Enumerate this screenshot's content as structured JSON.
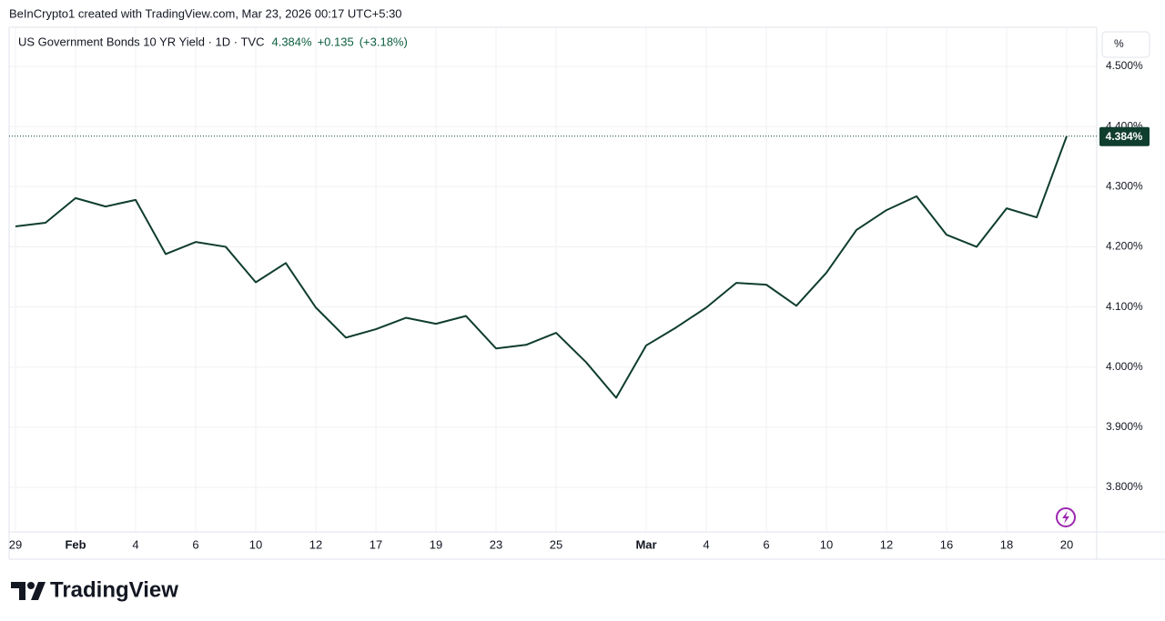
{
  "attribution": "BeInCrypto1 created with TradingView.com, Mar 23, 2026 00:17 UTC+5:30",
  "logo": "TradingView",
  "chart_data": {
    "type": "line",
    "title": "US Government Bonds 10 YR Yield · 1D · TVC",
    "last_price": "4.384%",
    "change": "+0.135",
    "change_percent": "(+3.18%)",
    "scale_unit": "%",
    "categories": [
      "29",
      null,
      "Feb",
      null,
      "4",
      null,
      "6",
      null,
      "10",
      null,
      "12",
      null,
      "17",
      null,
      "19",
      null,
      "23",
      null,
      "25",
      null,
      null,
      "Mar",
      null,
      "4",
      null,
      "6",
      null,
      "10",
      null,
      "12",
      null,
      "16",
      null,
      "18",
      null,
      "20"
    ],
    "values": [
      4.234,
      4.24,
      4.281,
      4.267,
      4.278,
      4.188,
      4.208,
      4.2,
      4.141,
      4.173,
      4.099,
      4.049,
      4.063,
      4.082,
      4.072,
      4.085,
      4.031,
      4.037,
      4.057,
      4.008,
      3.949,
      4.036,
      4.066,
      4.099,
      4.14,
      4.137,
      4.102,
      4.157,
      4.228,
      4.261,
      4.284,
      4.22,
      4.2,
      4.264,
      4.249,
      4.384
    ],
    "value_labels": [
      null,
      null,
      null,
      null,
      null,
      null,
      null,
      null,
      null,
      null,
      null,
      null,
      null,
      null,
      null,
      null,
      null,
      null,
      null,
      null,
      null,
      null,
      null,
      null,
      null,
      null,
      null,
      null,
      null,
      null,
      null,
      null,
      null,
      null,
      null,
      "4.384%"
    ],
    "color": "#0f3d2e",
    "ylim": [
      3.726,
      4.565
    ],
    "yticks": [
      {
        "value": 3.8,
        "label": "3.800%"
      },
      {
        "value": 3.9,
        "label": "3.900%"
      },
      {
        "value": 4.0,
        "label": "4.000%"
      },
      {
        "value": 4.1,
        "label": "4.100%"
      },
      {
        "value": 4.2,
        "label": "4.200%"
      },
      {
        "value": 4.3,
        "label": "4.300%"
      },
      {
        "value": 4.4,
        "label": "4.400%"
      },
      {
        "value": 4.5,
        "label": "4.500%"
      }
    ],
    "grid": true
  }
}
